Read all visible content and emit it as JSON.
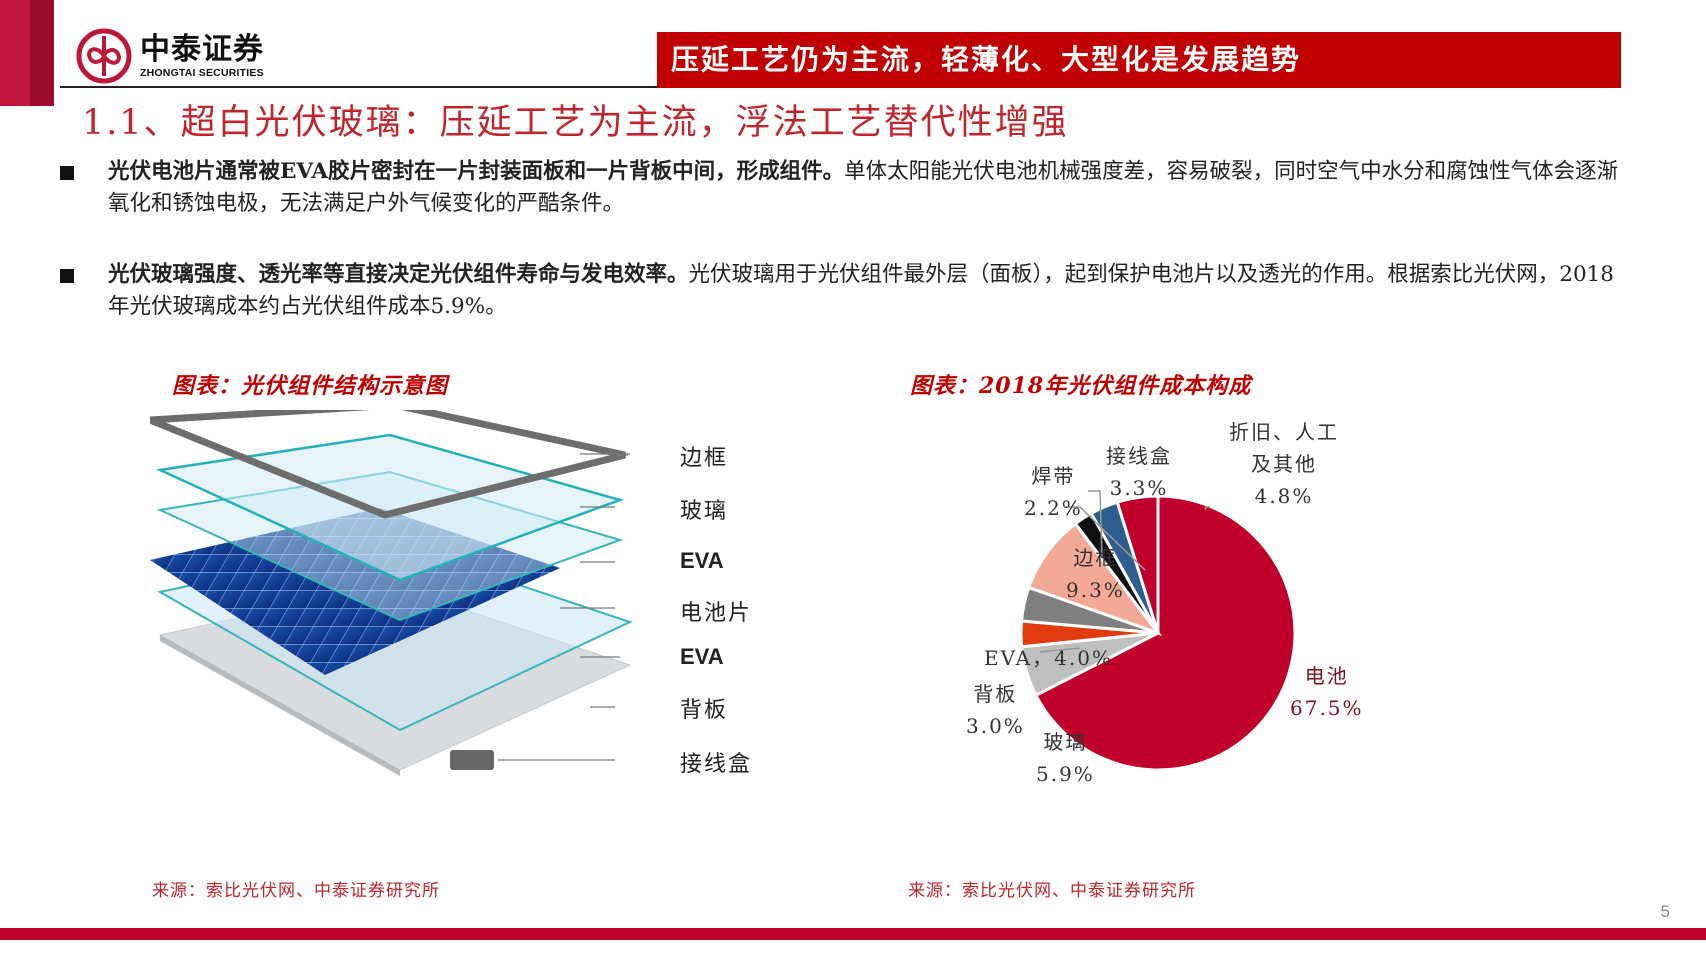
{
  "brand": {
    "name_cn": "中泰证券",
    "name_en": "ZHONGTAI SECURITIES",
    "accent_color": "#c00000"
  },
  "banner": {
    "text": "压延工艺仍为主流，轻薄化、大型化是发展趋势"
  },
  "section_title": "1.1、超白光伏玻璃：压延工艺为主流，浮法工艺替代性增强",
  "bullets": [
    {
      "bold": "光伏电池片通常被EVA胶片密封在一片封装面板和一片背板中间，形成组件。",
      "text": "单体太阳能光伏电池机械强度差，容易破裂，同时空气中水分和腐蚀性气体会逐渐氧化和锈蚀电极，无法满足户外气候变化的严酷条件。"
    },
    {
      "bold": "光伏玻璃强度、透光率等直接决定光伏组件寿命与发电效率。",
      "text": "光伏玻璃用于光伏组件最外层（面板），起到保护电池片以及透光的作用。根据索比光伏网，2018年光伏玻璃成本约占光伏组件成本5.9%。"
    }
  ],
  "figure_left": {
    "title": "图表：光伏组件结构示意图",
    "layers": [
      "边框",
      "玻璃",
      "EVA",
      "电池片",
      "EVA",
      "背板",
      "接线盒"
    ],
    "source": "来源：索比光伏网、中泰证券研究所"
  },
  "figure_right": {
    "title": "图表：2018年光伏组件成本构成",
    "source": "来源：索比光伏网、中泰证券研究所"
  },
  "chart_data": {
    "type": "pie",
    "title": "图表：2018年光伏组件成本构成",
    "categories": [
      "电池",
      "玻璃",
      "背板",
      "EVA",
      "边框",
      "焊带",
      "接线盒",
      "折旧、人工及其他"
    ],
    "values": [
      67.5,
      5.9,
      3.0,
      4.0,
      9.3,
      2.2,
      3.3,
      4.8
    ],
    "unit": "%",
    "colors": [
      "#c0002a",
      "#bfbfbf",
      "#e03c10",
      "#808080",
      "#f4a896",
      "#111111",
      "#2e5e8e",
      "#c0002a"
    ],
    "labels": [
      {
        "name": "电池",
        "value": "67.5%"
      },
      {
        "name": "玻璃",
        "value": "5.9%"
      },
      {
        "name": "背板",
        "value": "3.0%"
      },
      {
        "name": "EVA",
        "value": "4.0%"
      },
      {
        "name": "边框",
        "value": "9.3%"
      },
      {
        "name": "焊带",
        "value": "2.2%"
      },
      {
        "name": "接线盒",
        "value": "3.3%"
      },
      {
        "name": "折旧、人工及其他",
        "value": "4.8%"
      }
    ],
    "start_angle": "12 o'clock, clockwise",
    "legend": "none (data labels with leader lines)"
  },
  "page_number": "5"
}
